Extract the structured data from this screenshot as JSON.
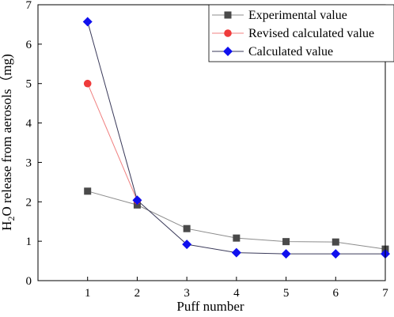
{
  "chart_data": {
    "type": "line",
    "xlabel": "Puff number",
    "ylabel": {
      "prefix": "H",
      "sub": "2",
      "suffix": "O release from aerosols（mg)"
    },
    "xlim": [
      0,
      7
    ],
    "ylim": [
      0,
      7
    ],
    "xticks": [
      1,
      2,
      3,
      4,
      5,
      6,
      7
    ],
    "yticks": [
      0,
      1,
      2,
      3,
      4,
      5,
      6,
      7
    ],
    "grid": false,
    "legend_position": "top-right",
    "series": [
      {
        "name": "Experimental value",
        "marker": "square",
        "color": "#4a4a4a",
        "line_color": "#8c8c8c",
        "x": [
          1,
          2,
          3,
          4,
          5,
          6,
          7
        ],
        "y": [
          2.27,
          1.92,
          1.32,
          1.08,
          0.99,
          0.98,
          0.8
        ]
      },
      {
        "name": "Revised calculated value",
        "marker": "circle",
        "color": "#ef3b3b",
        "line_color": "#f08080",
        "x": [
          1,
          2
        ],
        "y": [
          5.0,
          2.03
        ]
      },
      {
        "name": "Calculated value",
        "marker": "diamond",
        "color": "#1010ee",
        "line_color": "#3a3a5a",
        "x": [
          1,
          2,
          3,
          4,
          5,
          6,
          7
        ],
        "y": [
          6.57,
          2.04,
          0.92,
          0.71,
          0.68,
          0.68,
          0.68
        ]
      }
    ]
  }
}
